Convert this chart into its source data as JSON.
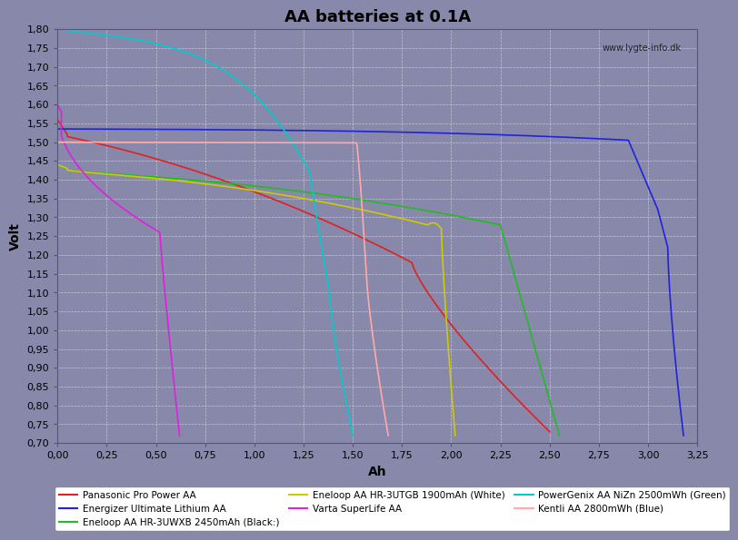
{
  "title": "AA batteries at 0.1A",
  "xlabel": "Ah",
  "ylabel": "Volt",
  "xlim": [
    0.0,
    3.25
  ],
  "ylim": [
    0.7,
    1.8
  ],
  "xticks": [
    0.0,
    0.25,
    0.5,
    0.75,
    1.0,
    1.25,
    1.5,
    1.75,
    2.0,
    2.25,
    2.5,
    2.75,
    3.0,
    3.25
  ],
  "yticks": [
    0.7,
    0.75,
    0.8,
    0.85,
    0.9,
    0.95,
    1.0,
    1.05,
    1.1,
    1.15,
    1.2,
    1.25,
    1.3,
    1.35,
    1.4,
    1.45,
    1.5,
    1.55,
    1.6,
    1.65,
    1.7,
    1.75,
    1.8
  ],
  "background_color": "#8888aa",
  "grid_color": "#aaaacc",
  "watermark": "www.lygte-info.dk",
  "series": [
    {
      "label": "Panasonic Pro Power AA",
      "color": "#dd2222",
      "linewidth": 1.2
    },
    {
      "label": "Energizer Ultimate Lithium AA",
      "color": "#2222dd",
      "linewidth": 1.2
    },
    {
      "label": "Eneloop AA HR-3UWXB 2450mAh (Black:)",
      "color": "#22bb22",
      "linewidth": 1.2
    },
    {
      "label": "Eneloop AA HR-3UTGB 1900mAh (White)",
      "color": "#cccc00",
      "linewidth": 1.2
    },
    {
      "label": "Varta SuperLife AA",
      "color": "#dd22dd",
      "linewidth": 1.2
    },
    {
      "label": "PowerGenix AA NiZn 2500mWh (Green)",
      "color": "#00cccc",
      "linewidth": 1.2
    },
    {
      "label": "Kentli AA 2800mWh (Blue)",
      "color": "#ffaaaa",
      "linewidth": 1.2
    }
  ],
  "title_fontsize": 13,
  "axis_fontsize": 10,
  "tick_fontsize": 8,
  "legend_fontsize": 7.5
}
